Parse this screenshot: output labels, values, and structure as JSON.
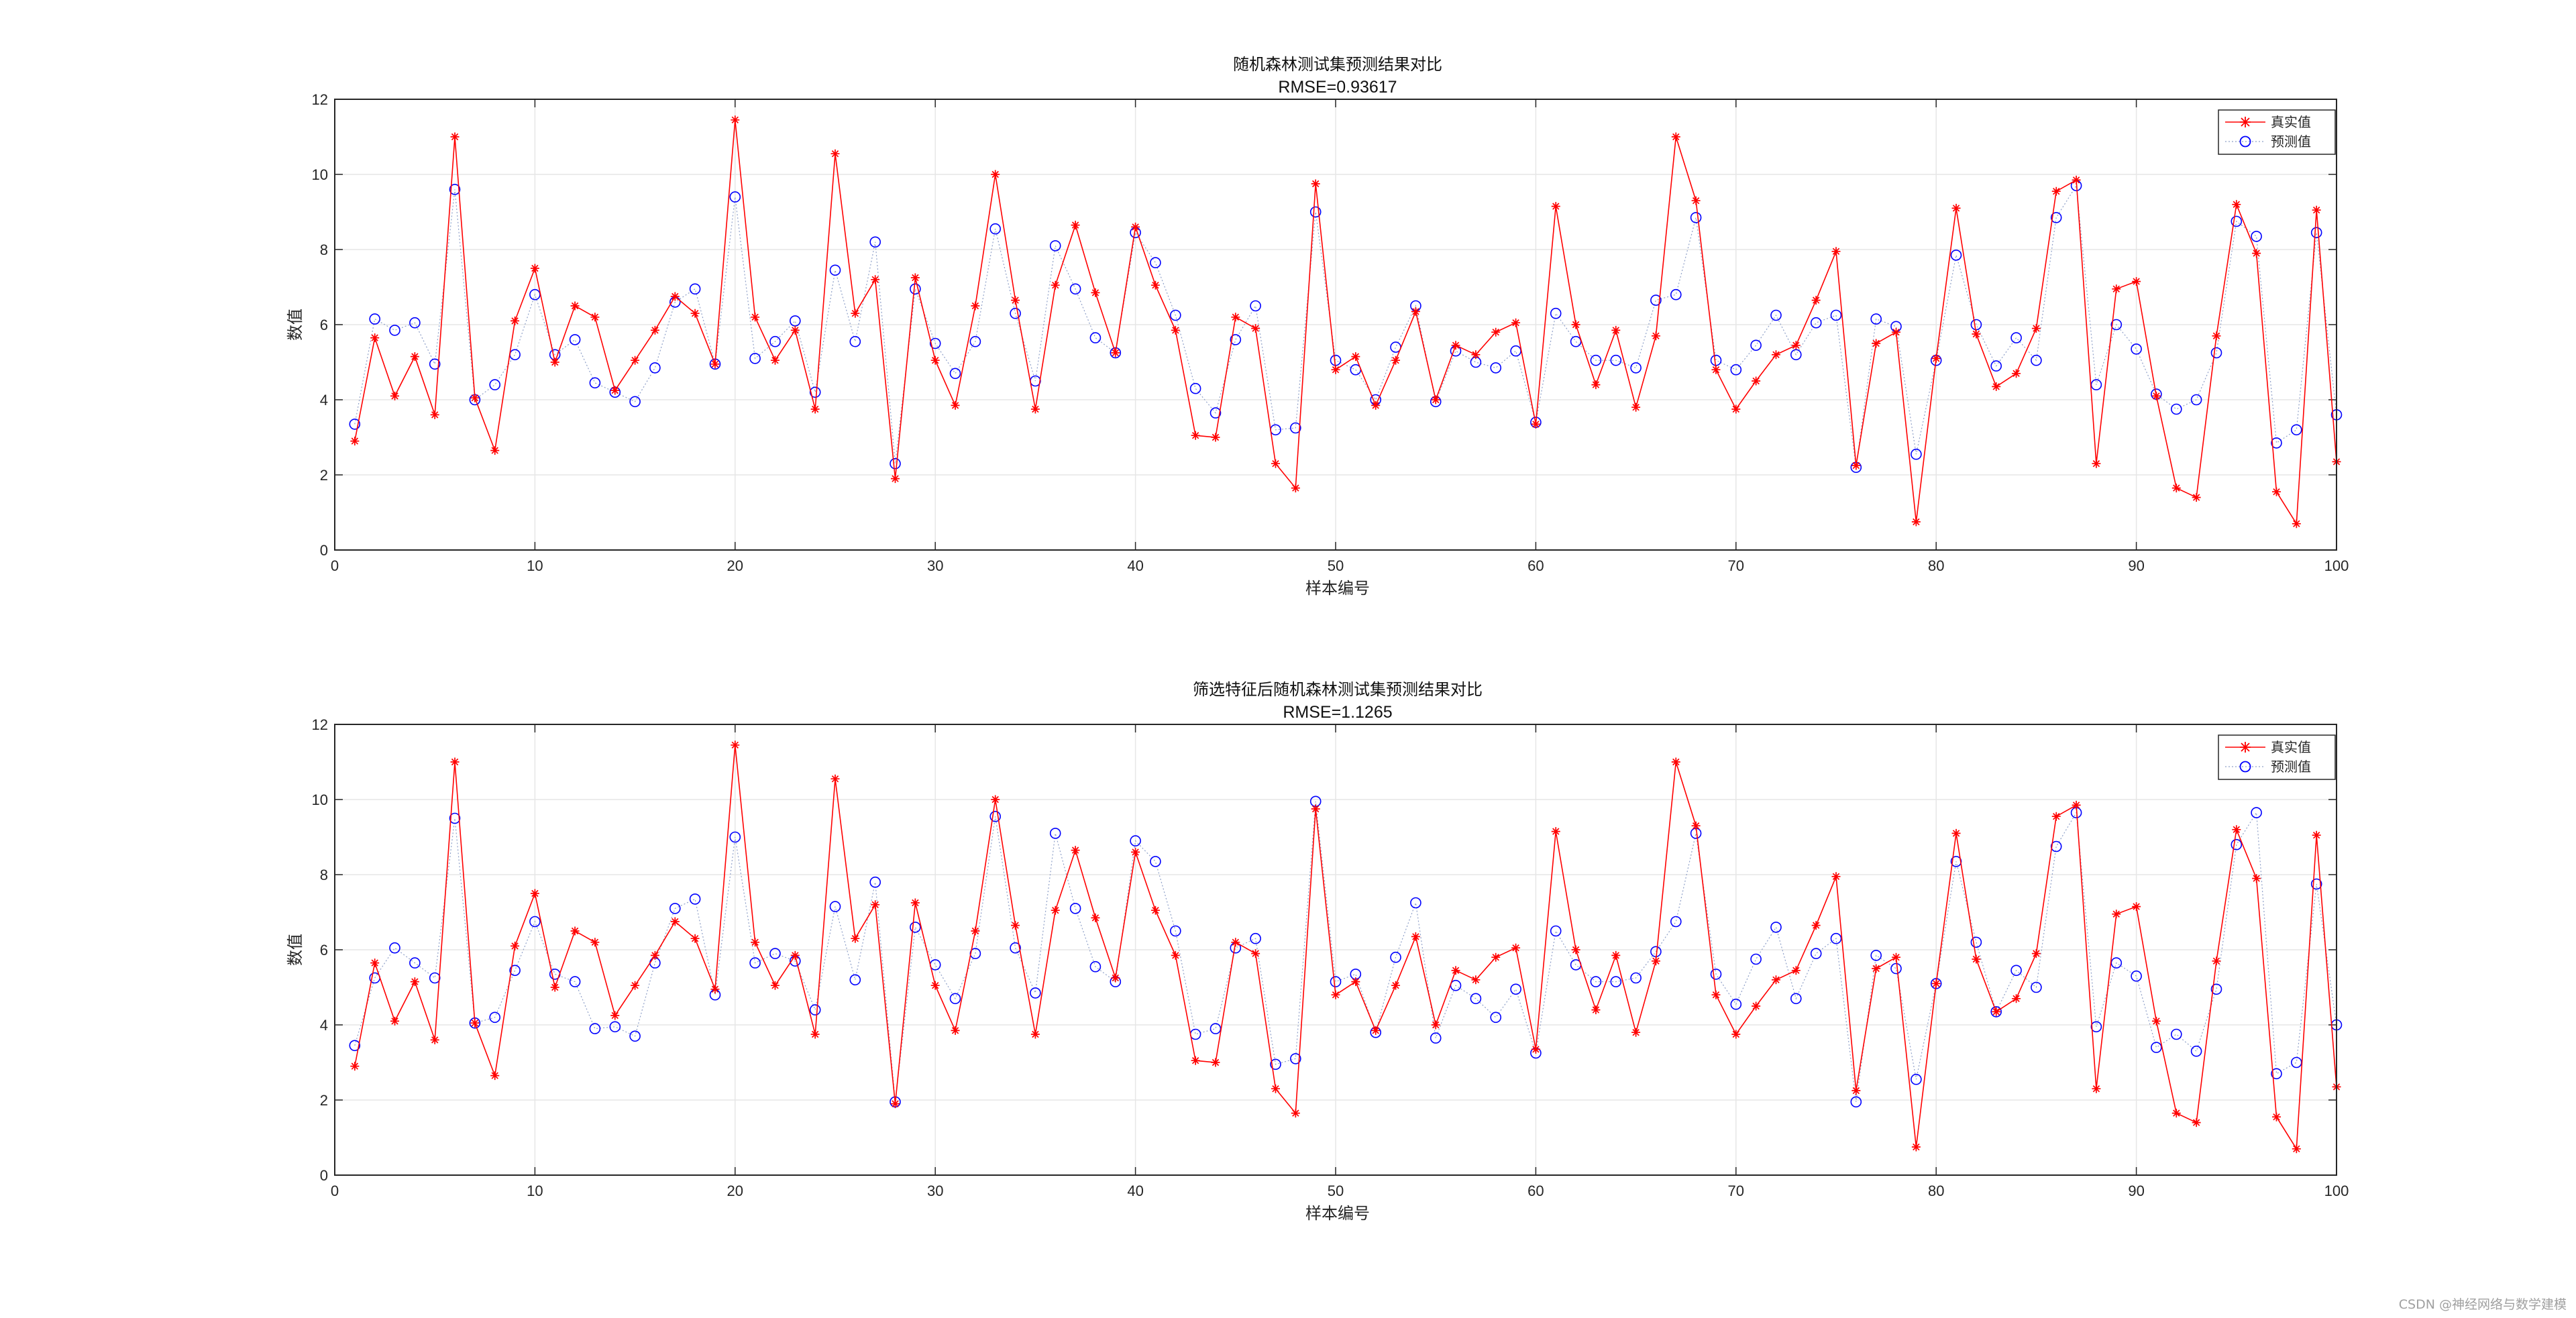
{
  "chart_data": [
    {
      "type": "line",
      "title": "随机森林测试集预测结果对比",
      "subtitle": "RMSE=0.93617",
      "xlabel": "样本编号",
      "ylabel": "数值",
      "xlim": [
        0,
        100
      ],
      "ylim": [
        0,
        12
      ],
      "xticks": [
        0,
        10,
        20,
        30,
        40,
        50,
        60,
        70,
        80,
        90,
        100
      ],
      "yticks": [
        0,
        2,
        4,
        6,
        8,
        10,
        12
      ],
      "grid": true,
      "legend_position": "top-right",
      "series": [
        {
          "name": "真实值",
          "color": "#ff0000",
          "marker": "asterisk",
          "line": "solid",
          "values": [
            2.9,
            5.65,
            4.1,
            5.15,
            3.6,
            11.0,
            4.05,
            2.65,
            6.1,
            7.5,
            5.0,
            6.5,
            6.2,
            4.25,
            5.05,
            5.85,
            6.75,
            6.3,
            4.95,
            11.45,
            6.2,
            5.05,
            5.85,
            3.75,
            10.55,
            6.3,
            7.2,
            1.9,
            7.25,
            5.05,
            3.85,
            6.5,
            10.0,
            6.65,
            3.75,
            7.05,
            8.65,
            6.85,
            5.25,
            8.6,
            7.05,
            5.85,
            3.05,
            3.0,
            6.2,
            5.9,
            2.3,
            1.65,
            9.75,
            4.8,
            5.15,
            3.85,
            5.05,
            6.35,
            4.0,
            5.45,
            5.2,
            5.8,
            6.05,
            3.35,
            9.15,
            6.0,
            4.4,
            5.85,
            3.8,
            5.7,
            11.0,
            9.3,
            4.8,
            3.75,
            4.5,
            5.2,
            5.45,
            6.65,
            7.95,
            2.25,
            5.5,
            5.8,
            0.75,
            5.1,
            9.1,
            5.75,
            4.35,
            4.7,
            5.9,
            9.55,
            9.85,
            2.3,
            6.95,
            7.15,
            4.1,
            1.65,
            1.4,
            5.7,
            9.2,
            7.9,
            1.55,
            0.7,
            9.05,
            2.35
          ]
        },
        {
          "name": "预测值",
          "color": "#0000ff",
          "marker": "circle",
          "line": "dotted",
          "values": [
            3.35,
            6.15,
            5.85,
            6.05,
            4.95,
            9.6,
            4.0,
            4.4,
            5.2,
            6.8,
            5.2,
            5.6,
            4.45,
            4.2,
            3.95,
            4.85,
            6.6,
            6.95,
            4.95,
            9.4,
            5.1,
            5.55,
            6.1,
            4.2,
            7.45,
            5.55,
            8.2,
            2.3,
            6.95,
            5.5,
            4.7,
            5.55,
            8.55,
            6.3,
            4.5,
            8.1,
            6.95,
            5.65,
            5.25,
            8.45,
            7.65,
            6.25,
            4.3,
            3.65,
            5.6,
            6.5,
            3.2,
            3.25,
            9.0,
            5.05,
            4.8,
            4.0,
            5.4,
            6.5,
            3.95,
            5.3,
            5.0,
            4.85,
            5.3,
            3.4,
            6.3,
            5.55,
            5.05,
            5.05,
            4.85,
            6.65,
            6.8,
            8.85,
            5.05,
            4.8,
            5.45,
            6.25,
            5.2,
            6.05,
            6.25,
            2.2,
            6.15,
            5.95,
            2.55,
            5.05,
            7.85,
            6.0,
            4.9,
            5.65,
            5.05,
            8.85,
            9.7,
            4.4,
            6.0,
            5.35,
            4.15,
            3.75,
            4.0,
            5.25,
            8.75,
            8.35,
            2.85,
            3.2,
            8.45,
            3.6
          ]
        }
      ]
    },
    {
      "type": "line",
      "title": "筛选特征后随机森林测试集预测结果对比",
      "subtitle": "RMSE=1.1265",
      "xlabel": "样本编号",
      "ylabel": "数值",
      "xlim": [
        0,
        100
      ],
      "ylim": [
        0,
        12
      ],
      "xticks": [
        0,
        10,
        20,
        30,
        40,
        50,
        60,
        70,
        80,
        90,
        100
      ],
      "yticks": [
        0,
        2,
        4,
        6,
        8,
        10,
        12
      ],
      "grid": true,
      "legend_position": "top-right",
      "series": [
        {
          "name": "真实值",
          "color": "#ff0000",
          "marker": "asterisk",
          "line": "solid",
          "values": [
            2.9,
            5.65,
            4.1,
            5.15,
            3.6,
            11.0,
            4.05,
            2.65,
            6.1,
            7.5,
            5.0,
            6.5,
            6.2,
            4.25,
            5.05,
            5.85,
            6.75,
            6.3,
            4.95,
            11.45,
            6.2,
            5.05,
            5.85,
            3.75,
            10.55,
            6.3,
            7.2,
            1.9,
            7.25,
            5.05,
            3.85,
            6.5,
            10.0,
            6.65,
            3.75,
            7.05,
            8.65,
            6.85,
            5.25,
            8.6,
            7.05,
            5.85,
            3.05,
            3.0,
            6.2,
            5.9,
            2.3,
            1.65,
            9.75,
            4.8,
            5.15,
            3.85,
            5.05,
            6.35,
            4.0,
            5.45,
            5.2,
            5.8,
            6.05,
            3.35,
            9.15,
            6.0,
            4.4,
            5.85,
            3.8,
            5.7,
            11.0,
            9.3,
            4.8,
            3.75,
            4.5,
            5.2,
            5.45,
            6.65,
            7.95,
            2.25,
            5.5,
            5.8,
            0.75,
            5.1,
            9.1,
            5.75,
            4.35,
            4.7,
            5.9,
            9.55,
            9.85,
            2.3,
            6.95,
            7.15,
            4.1,
            1.65,
            1.4,
            5.7,
            9.2,
            7.9,
            1.55,
            0.7,
            9.05,
            2.35
          ]
        },
        {
          "name": "预测值",
          "color": "#0000ff",
          "marker": "circle",
          "line": "dotted",
          "values": [
            3.45,
            5.25,
            6.05,
            5.65,
            5.25,
            9.5,
            4.05,
            4.2,
            5.45,
            6.75,
            5.35,
            5.15,
            3.9,
            3.95,
            3.7,
            5.65,
            7.1,
            7.35,
            4.8,
            9.0,
            5.65,
            5.9,
            5.7,
            4.4,
            7.15,
            5.2,
            7.8,
            1.95,
            6.6,
            5.6,
            4.7,
            5.9,
            9.55,
            6.05,
            4.85,
            9.1,
            7.1,
            5.55,
            5.15,
            8.9,
            8.35,
            6.5,
            3.75,
            3.9,
            6.05,
            6.3,
            2.95,
            3.1,
            9.95,
            5.15,
            5.35,
            3.8,
            5.8,
            7.25,
            3.65,
            5.05,
            4.7,
            4.2,
            4.95,
            3.25,
            6.5,
            5.6,
            5.15,
            5.15,
            5.25,
            5.95,
            6.75,
            9.1,
            5.35,
            4.55,
            5.75,
            6.6,
            4.7,
            5.9,
            6.3,
            1.95,
            5.85,
            5.5,
            2.55,
            5.1,
            8.35,
            6.2,
            4.35,
            5.45,
            5.0,
            8.75,
            9.65,
            3.95,
            5.65,
            5.3,
            3.4,
            3.75,
            3.3,
            4.95,
            8.8,
            9.65,
            2.7,
            3.0,
            7.75,
            4.0
          ]
        }
      ]
    }
  ],
  "watermark": "CSDN @神经网络与数学建模"
}
